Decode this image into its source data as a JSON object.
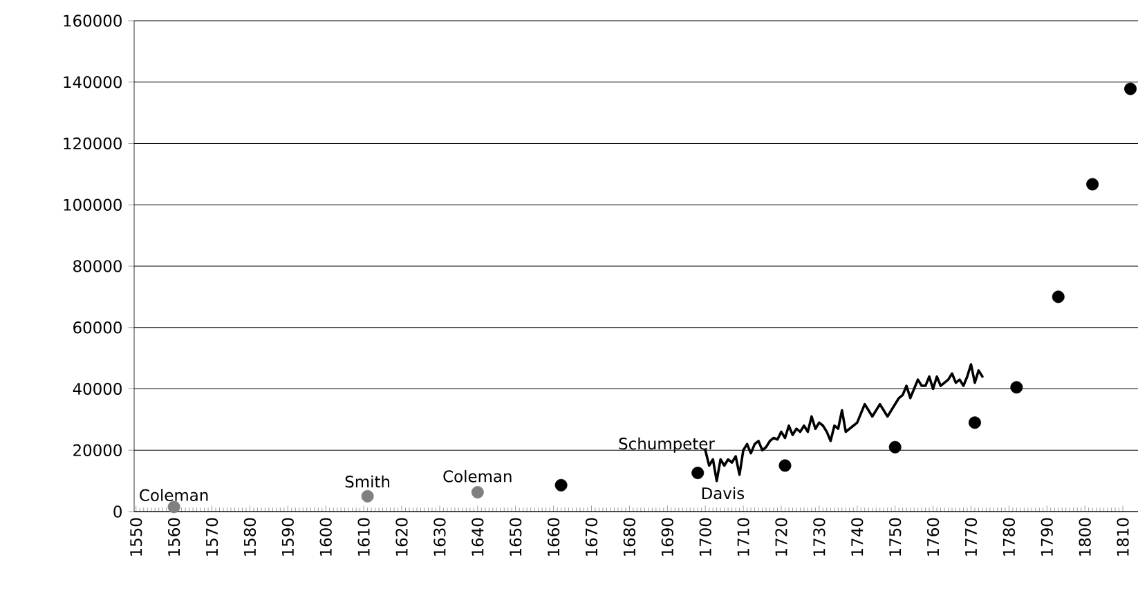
{
  "chart_data": {
    "type": "scatter",
    "xlim": [
      1549.5,
      1814
    ],
    "xticks": [
      1550,
      1560,
      1570,
      1580,
      1590,
      1600,
      1610,
      1620,
      1630,
      1640,
      1650,
      1660,
      1670,
      1680,
      1690,
      1700,
      1710,
      1720,
      1730,
      1740,
      1750,
      1760,
      1770,
      1780,
      1790,
      1800,
      1810
    ],
    "ylim": [
      0,
      160000
    ],
    "yticks": [
      0,
      20000,
      40000,
      60000,
      80000,
      100000,
      120000,
      140000,
      160000
    ],
    "grid": "y",
    "marker": "circle",
    "series": [
      {
        "color": "#808080",
        "x": [
          1560,
          1611,
          1640
        ],
        "values": [
          1500,
          5000,
          6300
        ]
      },
      {
        "color": "#000000",
        "x": [
          1662,
          1698,
          1721,
          1750,
          1771,
          1782,
          1793,
          1802,
          1812
        ],
        "values": [
          8600,
          12600,
          15000,
          21000,
          29000,
          40500,
          70000,
          106700,
          137800
        ]
      },
      {
        "type": "line",
        "color": "#000000",
        "marker": "none",
        "line_style": "solid",
        "x": [
          1700,
          1701,
          1702,
          1703,
          1704,
          1705,
          1706,
          1707,
          1708,
          1709,
          1710,
          1711,
          1712,
          1713,
          1714,
          1715,
          1716,
          1717,
          1718,
          1719,
          1720,
          1721,
          1722,
          1723,
          1724,
          1725,
          1726,
          1727,
          1728,
          1729,
          1730,
          1731,
          1732,
          1733,
          1734,
          1735,
          1736,
          1737,
          1738,
          1739,
          1740,
          1741,
          1742,
          1743,
          1744,
          1745,
          1746,
          1747,
          1748,
          1749,
          1750,
          1751,
          1752,
          1753,
          1754,
          1755,
          1756,
          1757,
          1758,
          1759,
          1760,
          1761,
          1762,
          1763,
          1764,
          1765,
          1766,
          1767,
          1768,
          1769,
          1770,
          1771,
          1772,
          1773
        ],
        "values": [
          20000,
          15000,
          17000,
          10000,
          17000,
          15000,
          17000,
          16000,
          18000,
          12000,
          20000,
          22000,
          19000,
          22000,
          23000,
          20000,
          21000,
          23000,
          24000,
          23500,
          26000,
          24000,
          28000,
          25000,
          27000,
          26000,
          28000,
          26000,
          31000,
          27000,
          29000,
          28000,
          26000,
          23000,
          28000,
          27000,
          33000,
          26000,
          27000,
          28000,
          29000,
          32000,
          35000,
          33000,
          31000,
          33000,
          35000,
          33000,
          31000,
          33000,
          35000,
          37000,
          38000,
          41000,
          37000,
          40000,
          43000,
          41000,
          41000,
          44000,
          40000,
          44000,
          41000,
          42000,
          43000,
          45000,
          42000,
          43000,
          41000,
          44000,
          48000,
          42000,
          46000,
          44000
        ]
      }
    ],
    "annotations": [
      {
        "text": "Coleman",
        "x": 1560,
        "y": 1500
      },
      {
        "text": "Smith",
        "x": 1611,
        "y": 5000
      },
      {
        "text": "Coleman",
        "x": 1640,
        "y": 6300
      },
      {
        "text": "Schumpeter",
        "x": 1700,
        "y": 20000
      },
      {
        "text": "Davis",
        "x": 1698,
        "y": 12600
      }
    ]
  }
}
